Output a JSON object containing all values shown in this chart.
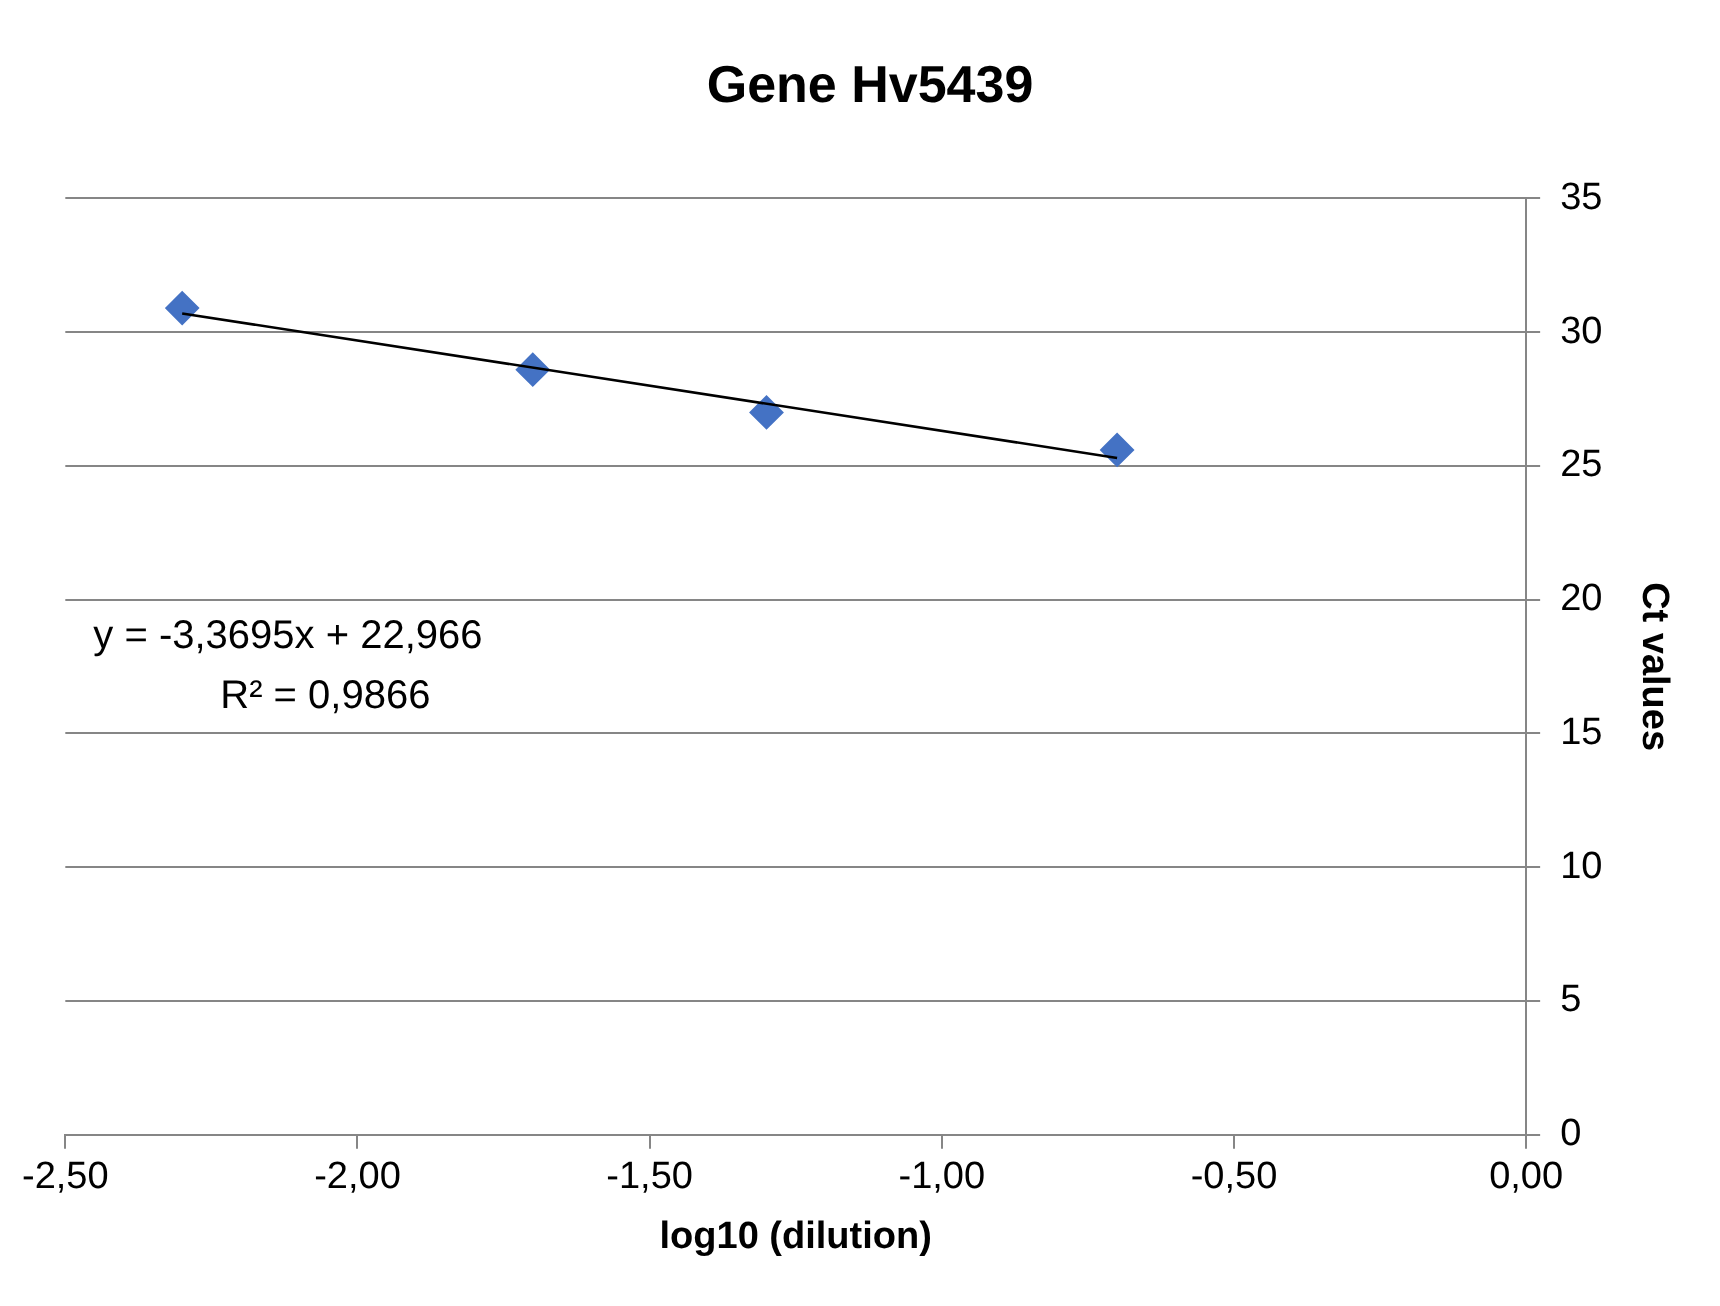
{
  "chart_data": {
    "type": "scatter",
    "title": "Gene Hv5439",
    "xlabel": "log10 (dilution)",
    "ylabel": "Ct values",
    "x": [
      -2.3,
      -1.7,
      -1.3,
      -0.7
    ],
    "series": [
      {
        "color": "#4472c4",
        "values": [
          30.9,
          28.6,
          27.0,
          25.6
        ],
        "marker": "diamond"
      },
      {
        "type": "line",
        "color": "#000000",
        "x": [
          -2.3,
          -0.7
        ],
        "values": [
          30.7,
          25.3
        ],
        "marker": "none",
        "line_style": "solid"
      }
    ],
    "xlim": [
      -2.5,
      0
    ],
    "xticks": [
      {
        "value": -2.5,
        "label": "-2,50"
      },
      {
        "value": -2,
        "label": "-2,00"
      },
      {
        "value": -1.5,
        "label": "-1,50"
      },
      {
        "value": -1,
        "label": "-1,00"
      },
      {
        "value": -0.5,
        "label": "-0,50"
      },
      {
        "value": 0,
        "label": "0,00"
      }
    ],
    "ylim": [
      0,
      35
    ],
    "yticks": [
      0,
      5,
      10,
      15,
      20,
      25,
      30,
      35
    ],
    "grid": "y",
    "legend": false,
    "annotations": [
      "y = -3,3695x + 22,966",
      "R² = 0,9866"
    ]
  }
}
